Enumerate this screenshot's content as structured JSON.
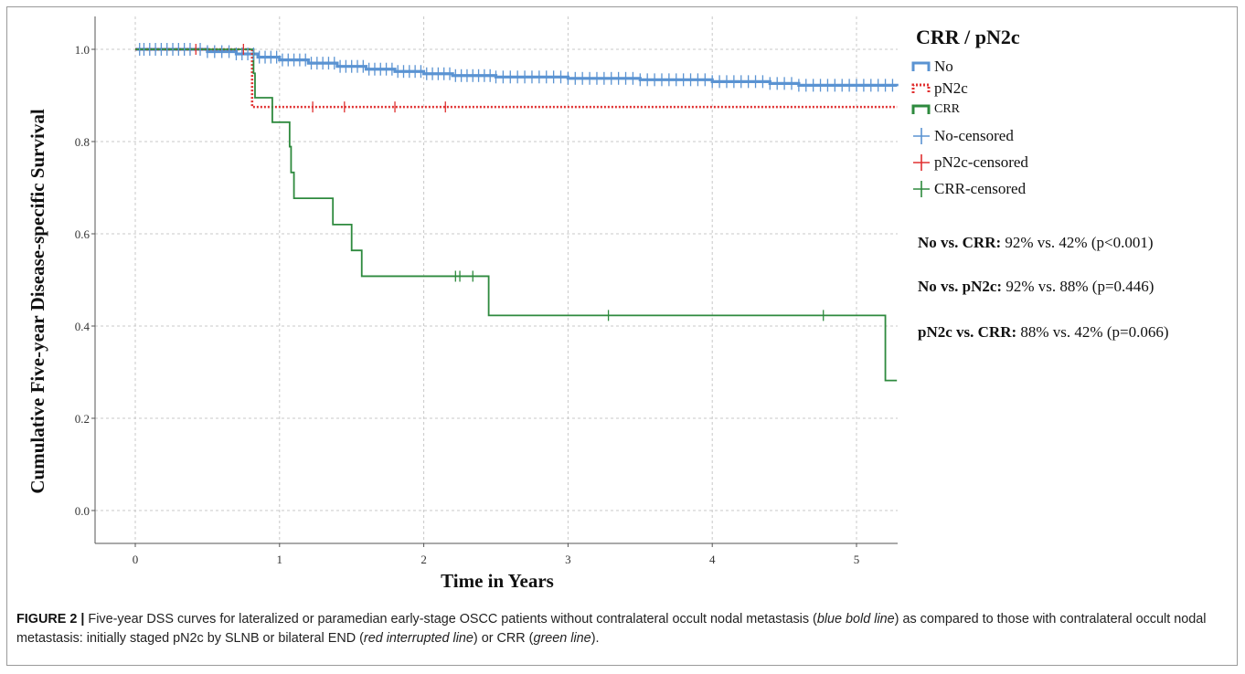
{
  "chart_data": {
    "type": "line",
    "step": true,
    "ylabel": "Cumulative Five-year Disease-specific Survival",
    "xlabel": "Time in Years",
    "xlim": [
      -0.28,
      5.28
    ],
    "ylim": [
      -0.07,
      1.07
    ],
    "x_ticks": [
      0,
      1,
      2,
      3,
      4,
      5
    ],
    "y_ticks": [
      0.0,
      0.2,
      0.4,
      0.6,
      0.8,
      1.0
    ],
    "grid": true,
    "legend_position": "right",
    "series": [
      {
        "name": "No",
        "color": "#5a93d2",
        "style": "bold",
        "points": [
          [
            0,
            1.0
          ],
          [
            0.5,
            0.995
          ],
          [
            0.7,
            0.99
          ],
          [
            0.85,
            0.983
          ],
          [
            1.0,
            0.977
          ],
          [
            1.2,
            0.97
          ],
          [
            1.4,
            0.963
          ],
          [
            1.6,
            0.957
          ],
          [
            1.8,
            0.952
          ],
          [
            2.0,
            0.947
          ],
          [
            2.2,
            0.943
          ],
          [
            2.5,
            0.94
          ],
          [
            3.0,
            0.937
          ],
          [
            3.5,
            0.934
          ],
          [
            4.0,
            0.93
          ],
          [
            4.4,
            0.926
          ],
          [
            4.6,
            0.922
          ],
          [
            5.28,
            0.92
          ]
        ],
        "censored": [
          0.03,
          0.06,
          0.1,
          0.14,
          0.18,
          0.22,
          0.26,
          0.3,
          0.34,
          0.38,
          0.45,
          0.5,
          0.55,
          0.6,
          0.65,
          0.7,
          0.74,
          0.78,
          0.82,
          0.86,
          0.9,
          0.94,
          0.98,
          1.02,
          1.06,
          1.1,
          1.14,
          1.18,
          1.22,
          1.26,
          1.3,
          1.34,
          1.38,
          1.42,
          1.46,
          1.5,
          1.54,
          1.58,
          1.62,
          1.66,
          1.7,
          1.74,
          1.78,
          1.82,
          1.86,
          1.9,
          1.94,
          1.98,
          2.02,
          2.06,
          2.1,
          2.14,
          2.18,
          2.22,
          2.26,
          2.3,
          2.34,
          2.38,
          2.42,
          2.46,
          2.5,
          2.55,
          2.6,
          2.65,
          2.7,
          2.75,
          2.8,
          2.85,
          2.9,
          2.95,
          3.0,
          3.05,
          3.1,
          3.15,
          3.2,
          3.25,
          3.3,
          3.35,
          3.4,
          3.45,
          3.5,
          3.55,
          3.6,
          3.65,
          3.7,
          3.75,
          3.8,
          3.85,
          3.9,
          3.95,
          4.0,
          4.05,
          4.1,
          4.15,
          4.2,
          4.25,
          4.3,
          4.35,
          4.4,
          4.45,
          4.5,
          4.55,
          4.6,
          4.65,
          4.7,
          4.75,
          4.8,
          4.85,
          4.9,
          4.95,
          5.0,
          5.05,
          5.1,
          5.15,
          5.2,
          5.25
        ]
      },
      {
        "name": "pN2c",
        "color": "#e03030",
        "style": "dotted",
        "points": [
          [
            0,
            1.0
          ],
          [
            0.81,
            1.0
          ],
          [
            0.81,
            0.875
          ],
          [
            5.28,
            0.875
          ]
        ],
        "censored": [
          0.42,
          0.75,
          1.23,
          1.45,
          1.8,
          2.15
        ]
      },
      {
        "name": "CRR",
        "color": "#2e8a3e",
        "style": "solid",
        "points": [
          [
            0,
            1.0
          ],
          [
            0.82,
            1.0
          ],
          [
            0.82,
            0.948
          ],
          [
            0.83,
            0.948
          ],
          [
            0.83,
            0.895
          ],
          [
            0.95,
            0.895
          ],
          [
            0.95,
            0.842
          ],
          [
            1.07,
            0.842
          ],
          [
            1.07,
            0.789
          ],
          [
            1.08,
            0.789
          ],
          [
            1.08,
            0.733
          ],
          [
            1.1,
            0.733
          ],
          [
            1.1,
            0.677
          ],
          [
            1.37,
            0.677
          ],
          [
            1.37,
            0.62
          ],
          [
            1.5,
            0.62
          ],
          [
            1.5,
            0.564
          ],
          [
            1.57,
            0.564
          ],
          [
            1.57,
            0.508
          ],
          [
            2.45,
            0.508
          ],
          [
            2.45,
            0.423
          ],
          [
            5.2,
            0.423
          ],
          [
            5.2,
            0.282
          ],
          [
            5.28,
            0.282
          ]
        ],
        "censored": [
          2.22,
          2.25,
          2.34,
          3.28,
          4.77
        ]
      }
    ],
    "legend_title": "CRR / pN2c",
    "legend": [
      {
        "label": "No",
        "kind": "step",
        "series": 0
      },
      {
        "label": "pN2c",
        "kind": "step",
        "series": 1
      },
      {
        "label": "CRR",
        "kind": "step",
        "series": 2
      },
      {
        "label": "No-censored",
        "kind": "censor",
        "series": 0
      },
      {
        "label": "pN2c-censored",
        "kind": "censor",
        "series": 1
      },
      {
        "label": "CRR-censored",
        "kind": "censor",
        "series": 2
      }
    ]
  },
  "stats": [
    {
      "label": "No vs. CRR:",
      "text": " 92% vs. 42% (p<0.001)"
    },
    {
      "label": "No vs. pN2c:",
      "text": " 92% vs. 88% (p=0.446)"
    },
    {
      "label": "pN2c vs. CRR:",
      "text": " 88% vs. 42% (p=0.066)"
    }
  ],
  "caption": {
    "figure": "FIGURE 2 |",
    "part1": " Five-year DSS curves for lateralized or paramedian early-stage OSCC patients without contralateral occult nodal metastasis (",
    "em1": "blue bold line",
    "part2": ") as compared to those with contralateral occult nodal metastasis: initially staged pN2c by SLNB or bilateral END (",
    "em2": "red interrupted line",
    "part3": ") or CRR (",
    "em3": "green line",
    "part4": ")."
  }
}
